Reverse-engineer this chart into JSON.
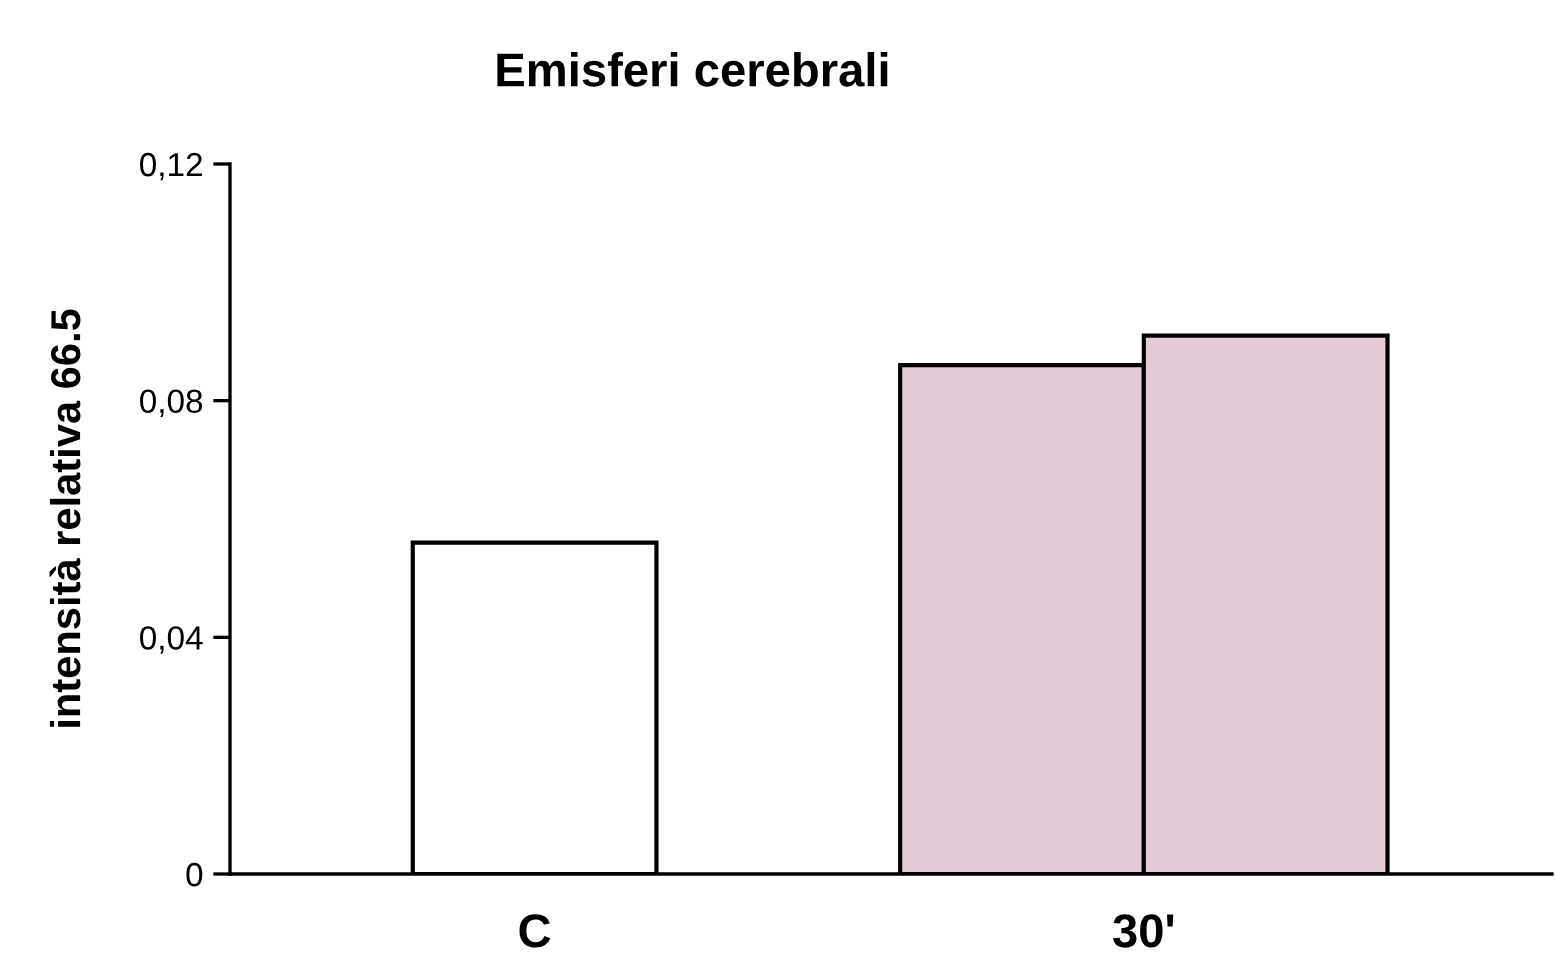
{
  "chart_data": {
    "type": "bar",
    "title": "Emisferi cerebrali",
    "ylabel": "intensità relativa 66.5",
    "categories": [
      "C",
      "30'"
    ],
    "series": [
      {
        "colors": [
          "#ffffff",
          "#e6cad8"
        ],
        "values": [
          0.056,
          0.086
        ]
      },
      {
        "color": "#e6cad8",
        "values": [
          null,
          0.091
        ]
      }
    ],
    "ylim": [
      0,
      0.12
    ],
    "yticks": [
      0,
      {
        "value": 0.04,
        "label": "0,04"
      },
      {
        "value": 0.08,
        "label": "0,08"
      },
      {
        "value": 0.12,
        "label": "0,12"
      }
    ],
    "grid": false,
    "legend": false
  }
}
